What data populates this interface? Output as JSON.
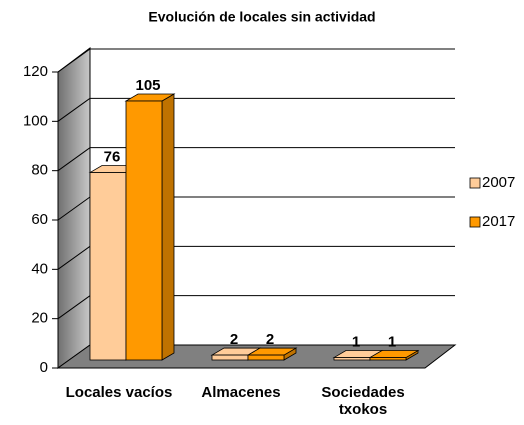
{
  "chart_data": {
    "type": "bar3d",
    "title": "Evolución de locales sin actividad",
    "categories": [
      "Locales vacíos",
      "Almacenes",
      "Sociedades txokos"
    ],
    "series": [
      {
        "name": "2007",
        "color": "#ffcc99",
        "values": [
          76,
          2,
          1
        ]
      },
      {
        "name": "2017",
        "color": "#ff9900",
        "values": [
          105,
          2,
          1
        ]
      }
    ],
    "ylim": [
      0,
      120
    ],
    "yticks": [
      0,
      20,
      40,
      60,
      80,
      100,
      120
    ],
    "grid": true,
    "legend": "right"
  }
}
